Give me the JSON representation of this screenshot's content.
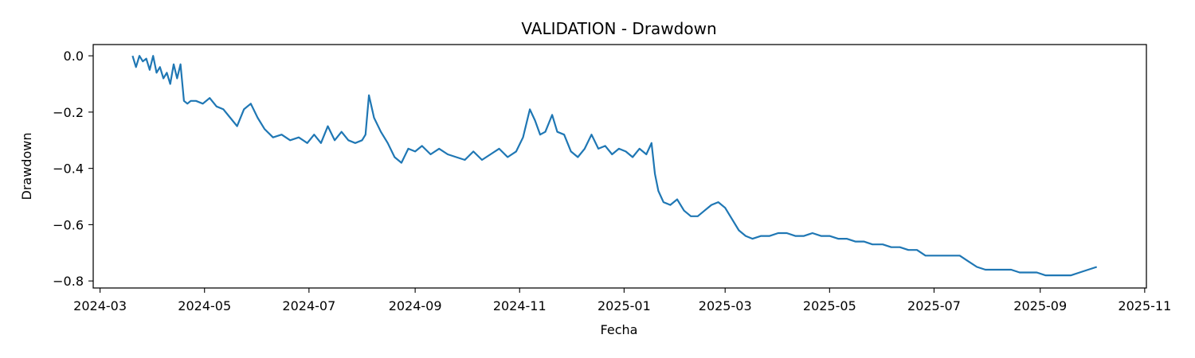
{
  "chart_data": {
    "type": "line",
    "title": "VALIDATION - Drawdown",
    "xlabel": "Fecha",
    "ylabel": "Drawdown",
    "x_ticks": [
      "2024-03",
      "2024-05",
      "2024-07",
      "2024-09",
      "2024-11",
      "2025-01",
      "2025-03",
      "2025-05",
      "2025-07",
      "2025-09",
      "2025-11"
    ],
    "y_ticks": [
      0.0,
      -0.2,
      -0.4,
      -0.6,
      -0.8
    ],
    "y_tick_labels": [
      "0.0",
      "−0.2",
      "−0.4",
      "−0.6",
      "−0.8"
    ],
    "xlim": [
      "2024-02-26",
      "2025-11-02"
    ],
    "ylim": [
      -0.825,
      0.04
    ],
    "grid": false,
    "line_color": "#1f77b4",
    "series": [
      {
        "x": [
          "2024-03-20",
          "2024-03-22",
          "2024-03-24",
          "2024-03-26",
          "2024-03-28",
          "2024-03-30",
          "2024-04-01",
          "2024-04-03",
          "2024-04-05",
          "2024-04-07",
          "2024-04-09",
          "2024-04-11",
          "2024-04-13",
          "2024-04-15",
          "2024-04-17",
          "2024-04-19",
          "2024-04-21",
          "2024-04-23",
          "2024-04-26",
          "2024-04-30",
          "2024-05-04",
          "2024-05-08",
          "2024-05-12",
          "2024-05-16",
          "2024-05-20",
          "2024-05-24",
          "2024-05-28",
          "2024-06-01",
          "2024-06-05",
          "2024-06-10",
          "2024-06-15",
          "2024-06-20",
          "2024-06-25",
          "2024-06-30",
          "2024-07-04",
          "2024-07-08",
          "2024-07-12",
          "2024-07-16",
          "2024-07-20",
          "2024-07-24",
          "2024-07-28",
          "2024-08-01",
          "2024-08-03",
          "2024-08-05",
          "2024-08-08",
          "2024-08-12",
          "2024-08-16",
          "2024-08-20",
          "2024-08-24",
          "2024-08-28",
          "2024-09-01",
          "2024-09-05",
          "2024-09-10",
          "2024-09-15",
          "2024-09-20",
          "2024-09-25",
          "2024-09-30",
          "2024-10-05",
          "2024-10-10",
          "2024-10-15",
          "2024-10-20",
          "2024-10-25",
          "2024-10-30",
          "2024-11-03",
          "2024-11-07",
          "2024-11-10",
          "2024-11-13",
          "2024-11-16",
          "2024-11-20",
          "2024-11-23",
          "2024-11-27",
          "2024-12-01",
          "2024-12-05",
          "2024-12-09",
          "2024-12-13",
          "2024-12-17",
          "2024-12-21",
          "2024-12-25",
          "2024-12-29",
          "2025-01-02",
          "2025-01-06",
          "2025-01-10",
          "2025-01-14",
          "2025-01-17",
          "2025-01-19",
          "2025-01-21",
          "2025-01-24",
          "2025-01-28",
          "2025-02-01",
          "2025-02-05",
          "2025-02-09",
          "2025-02-13",
          "2025-02-17",
          "2025-02-21",
          "2025-02-25",
          "2025-03-01",
          "2025-03-05",
          "2025-03-09",
          "2025-03-13",
          "2025-03-17",
          "2025-03-22",
          "2025-03-27",
          "2025-04-01",
          "2025-04-06",
          "2025-04-11",
          "2025-04-16",
          "2025-04-21",
          "2025-04-26",
          "2025-05-01",
          "2025-05-06",
          "2025-05-11",
          "2025-05-16",
          "2025-05-21",
          "2025-05-26",
          "2025-06-01",
          "2025-06-06",
          "2025-06-11",
          "2025-06-16",
          "2025-06-21",
          "2025-06-26",
          "2025-07-01",
          "2025-07-06",
          "2025-07-11",
          "2025-07-16",
          "2025-07-21",
          "2025-07-26",
          "2025-07-31",
          "2025-08-05",
          "2025-08-10",
          "2025-08-15",
          "2025-08-20",
          "2025-08-25",
          "2025-08-30",
          "2025-09-04",
          "2025-09-09",
          "2025-09-14",
          "2025-09-19",
          "2025-09-24",
          "2025-09-29",
          "2025-10-04"
        ],
        "y": [
          0.0,
          -0.04,
          0.0,
          -0.02,
          -0.01,
          -0.05,
          0.0,
          -0.06,
          -0.04,
          -0.08,
          -0.06,
          -0.1,
          -0.03,
          -0.08,
          -0.03,
          -0.16,
          -0.17,
          -0.16,
          -0.16,
          -0.17,
          -0.15,
          -0.18,
          -0.19,
          -0.22,
          -0.25,
          -0.19,
          -0.17,
          -0.22,
          -0.26,
          -0.29,
          -0.28,
          -0.3,
          -0.29,
          -0.31,
          -0.28,
          -0.31,
          -0.25,
          -0.3,
          -0.27,
          -0.3,
          -0.31,
          -0.3,
          -0.28,
          -0.14,
          -0.22,
          -0.27,
          -0.31,
          -0.36,
          -0.38,
          -0.33,
          -0.34,
          -0.32,
          -0.35,
          -0.33,
          -0.35,
          -0.36,
          -0.37,
          -0.34,
          -0.37,
          -0.35,
          -0.33,
          -0.36,
          -0.34,
          -0.29,
          -0.19,
          -0.23,
          -0.28,
          -0.27,
          -0.21,
          -0.27,
          -0.28,
          -0.34,
          -0.36,
          -0.33,
          -0.28,
          -0.33,
          -0.32,
          -0.35,
          -0.33,
          -0.34,
          -0.36,
          -0.33,
          -0.35,
          -0.31,
          -0.42,
          -0.48,
          -0.52,
          -0.53,
          -0.51,
          -0.55,
          -0.57,
          -0.57,
          -0.55,
          -0.53,
          -0.52,
          -0.54,
          -0.58,
          -0.62,
          -0.64,
          -0.65,
          -0.64,
          -0.64,
          -0.63,
          -0.63,
          -0.64,
          -0.64,
          -0.63,
          -0.64,
          -0.64,
          -0.65,
          -0.65,
          -0.66,
          -0.66,
          -0.67,
          -0.67,
          -0.68,
          -0.68,
          -0.69,
          -0.69,
          -0.71,
          -0.71,
          -0.71,
          -0.71,
          -0.71,
          -0.73,
          -0.75,
          -0.76,
          -0.76,
          -0.76,
          -0.76,
          -0.77,
          -0.77,
          -0.77,
          -0.78,
          -0.78,
          -0.78,
          -0.78,
          -0.77,
          -0.76,
          -0.75
        ]
      }
    ]
  }
}
